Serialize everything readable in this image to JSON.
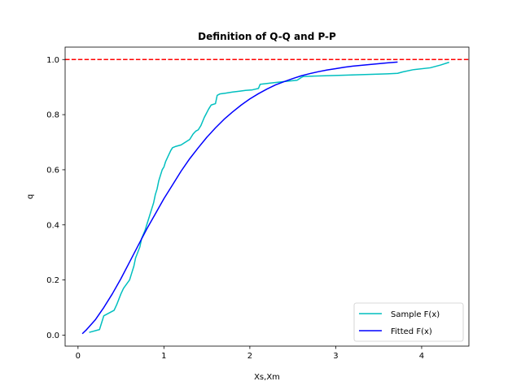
{
  "chart_data": {
    "type": "line",
    "title": "Definition of Q-Q and P-P",
    "xlabel": "Xs,Xm",
    "ylabel": "q",
    "xlim": [
      -0.15,
      4.55
    ],
    "ylim": [
      -0.04,
      1.045
    ],
    "xticks": [
      0,
      1,
      2,
      3,
      4
    ],
    "yticks": [
      0.0,
      0.2,
      0.4,
      0.6,
      0.8,
      1.0
    ],
    "legend_position": "lower-right",
    "reference_line": {
      "y": 1.0,
      "color": "#ff0000",
      "style": "dashed"
    },
    "series": [
      {
        "name": "Sample F(x)",
        "color": "#00bfbf",
        "x": [
          0.13,
          0.25,
          0.3,
          0.42,
          0.45,
          0.5,
          0.53,
          0.6,
          0.62,
          0.65,
          0.67,
          0.72,
          0.74,
          0.78,
          0.8,
          0.83,
          0.86,
          0.88,
          0.9,
          0.92,
          0.94,
          0.96,
          0.98,
          1.0,
          1.02,
          1.05,
          1.08,
          1.1,
          1.14,
          1.2,
          1.25,
          1.3,
          1.34,
          1.37,
          1.4,
          1.43,
          1.47,
          1.52,
          1.55,
          1.6,
          1.62,
          1.65,
          1.72,
          1.8,
          1.88,
          1.95,
          2.03,
          2.1,
          2.12,
          2.25,
          2.4,
          2.55,
          2.6,
          2.62,
          2.75,
          3.0,
          3.3,
          3.6,
          3.72,
          3.78,
          3.9,
          4.1,
          4.22,
          4.32
        ],
        "y": [
          0.01,
          0.02,
          0.07,
          0.09,
          0.11,
          0.15,
          0.17,
          0.2,
          0.22,
          0.25,
          0.28,
          0.32,
          0.35,
          0.38,
          0.4,
          0.43,
          0.46,
          0.48,
          0.51,
          0.53,
          0.56,
          0.58,
          0.6,
          0.61,
          0.63,
          0.65,
          0.67,
          0.68,
          0.685,
          0.69,
          0.7,
          0.71,
          0.73,
          0.74,
          0.745,
          0.76,
          0.79,
          0.82,
          0.835,
          0.84,
          0.87,
          0.875,
          0.878,
          0.882,
          0.885,
          0.888,
          0.89,
          0.895,
          0.91,
          0.915,
          0.92,
          0.925,
          0.935,
          0.938,
          0.94,
          0.942,
          0.945,
          0.948,
          0.95,
          0.955,
          0.963,
          0.97,
          0.98,
          0.99
        ]
      },
      {
        "name": "Fitted F(x)",
        "color": "#0000ff",
        "x": [
          0.05,
          0.1,
          0.2,
          0.3,
          0.4,
          0.5,
          0.6,
          0.7,
          0.8,
          0.9,
          1.0,
          1.1,
          1.2,
          1.3,
          1.4,
          1.5,
          1.6,
          1.7,
          1.8,
          1.9,
          2.0,
          2.1,
          2.2,
          2.3,
          2.4,
          2.5,
          2.6,
          2.7,
          2.8,
          2.9,
          3.0,
          3.1,
          3.2,
          3.3,
          3.4,
          3.5,
          3.6,
          3.72
        ],
        "y": [
          0.005,
          0.02,
          0.055,
          0.1,
          0.15,
          0.205,
          0.265,
          0.325,
          0.385,
          0.44,
          0.495,
          0.545,
          0.595,
          0.64,
          0.68,
          0.718,
          0.752,
          0.783,
          0.81,
          0.835,
          0.857,
          0.876,
          0.893,
          0.908,
          0.92,
          0.931,
          0.941,
          0.949,
          0.956,
          0.962,
          0.967,
          0.972,
          0.976,
          0.979,
          0.982,
          0.985,
          0.988,
          0.991
        ]
      }
    ]
  }
}
